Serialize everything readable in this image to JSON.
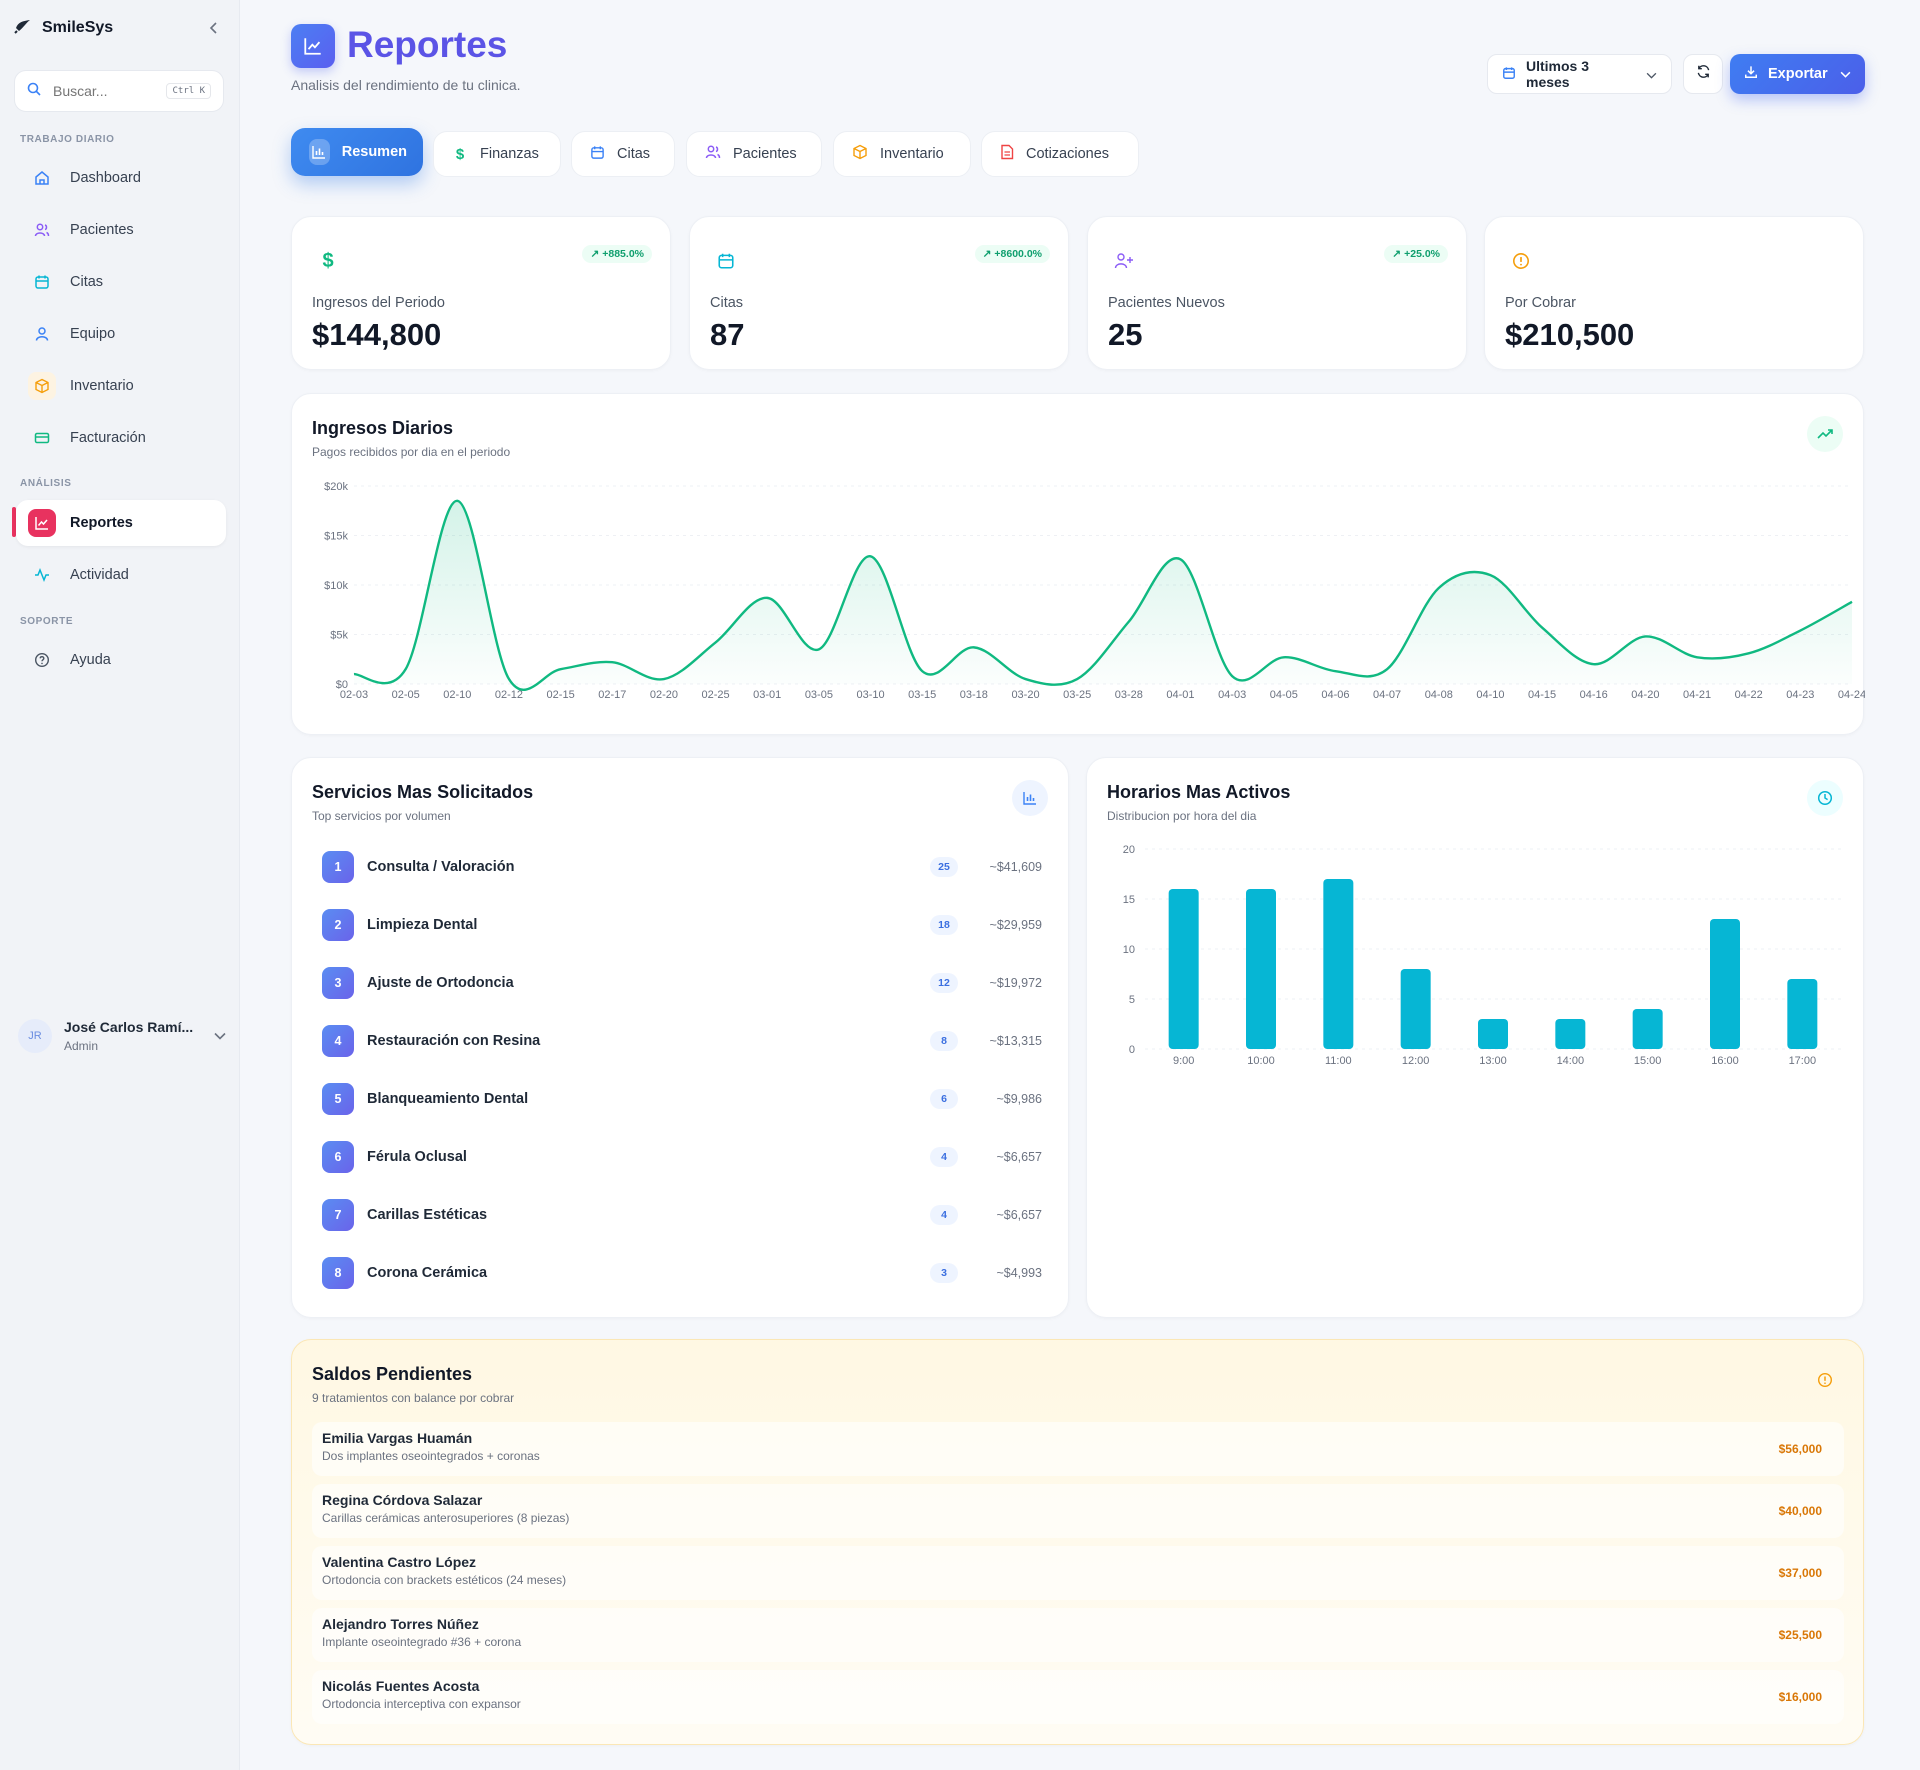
{
  "app": {
    "name": "SmileSys"
  },
  "search": {
    "placeholder": "Buscar...",
    "shortcut": "Ctrl K"
  },
  "sidebar": {
    "sections": [
      {
        "label": "TRABAJO DIARIO"
      },
      {
        "label": "ANÁLISIS"
      },
      {
        "label": "SOPORTE"
      }
    ],
    "items": [
      {
        "label": "Dashboard",
        "icon": "home-icon"
      },
      {
        "label": "Pacientes",
        "icon": "users-icon"
      },
      {
        "label": "Citas",
        "icon": "calendar-icon"
      },
      {
        "label": "Equipo",
        "icon": "user-icon"
      },
      {
        "label": "Inventario",
        "icon": "box-icon"
      },
      {
        "label": "Facturación",
        "icon": "credit-card-icon"
      },
      {
        "label": "Reportes",
        "icon": "chart-line-icon",
        "active": true
      },
      {
        "label": "Actividad",
        "icon": "activity-icon"
      },
      {
        "label": "Ayuda",
        "icon": "help-circle-icon"
      }
    ],
    "user": {
      "initials": "JR",
      "name": "José Carlos Ramí...",
      "role": "Admin"
    }
  },
  "header": {
    "title": "Reportes",
    "subtitle": "Analisis del rendimiento de tu clinica.",
    "range_label": "Ultimos 3 meses",
    "export_label": "Exportar"
  },
  "tabs": [
    {
      "label": "Resumen",
      "active": true,
      "color": "#ffffff"
    },
    {
      "label": "Finanzas",
      "color": "#10b981"
    },
    {
      "label": "Citas",
      "color": "#3b82f6"
    },
    {
      "label": "Pacientes",
      "color": "#8b5cf6"
    },
    {
      "label": "Inventario",
      "color": "#f59e0b"
    },
    {
      "label": "Cotizaciones",
      "color": "#ef4444"
    }
  ],
  "kpis": [
    {
      "label": "Ingresos del Periodo",
      "value": "$144,800",
      "badge": "+885.0%",
      "icon": "dollar-icon",
      "color": "#10b981"
    },
    {
      "label": "Citas",
      "value": "87",
      "badge": "+8600.0%",
      "icon": "calendar-icon",
      "color": "#06b6d4"
    },
    {
      "label": "Pacientes Nuevos",
      "value": "25",
      "badge": "+25.0%",
      "icon": "user-plus-icon",
      "color": "#8b5cf6"
    },
    {
      "label": "Por Cobrar",
      "value": "$210,500",
      "badge": "",
      "icon": "alert-circle-icon",
      "color": "#f59e0b"
    }
  ],
  "daily": {
    "title": "Ingresos Diarios",
    "subtitle": "Pagos recibidos por dia en el periodo"
  },
  "services": {
    "title": "Servicios Mas Solicitados",
    "subtitle": "Top servicios por volumen",
    "rows": [
      {
        "rank": "1",
        "name": "Consulta / Valoración",
        "count": "25",
        "amount": "~$41,609"
      },
      {
        "rank": "2",
        "name": "Limpieza Dental",
        "count": "18",
        "amount": "~$29,959"
      },
      {
        "rank": "3",
        "name": "Ajuste de Ortodoncia",
        "count": "12",
        "amount": "~$19,972"
      },
      {
        "rank": "4",
        "name": "Restauración con Resina",
        "count": "8",
        "amount": "~$13,315"
      },
      {
        "rank": "5",
        "name": "Blanqueamiento Dental",
        "count": "6",
        "amount": "~$9,986"
      },
      {
        "rank": "6",
        "name": "Férula Oclusal",
        "count": "4",
        "amount": "~$6,657"
      },
      {
        "rank": "7",
        "name": "Carillas Estéticas",
        "count": "4",
        "amount": "~$6,657"
      },
      {
        "rank": "8",
        "name": "Corona Cerámica",
        "count": "3",
        "amount": "~$4,993"
      }
    ]
  },
  "hours": {
    "title": "Horarios Mas Activos",
    "subtitle": "Distribucion por hora del dia"
  },
  "balances": {
    "title": "Saldos Pendientes",
    "subtitle": "9 tratamientos con balance por cobrar",
    "rows": [
      {
        "name": "Emilia Vargas Huamán",
        "desc": "Dos implantes oseointegrados + coronas",
        "amount": "$56,000"
      },
      {
        "name": "Regina Córdova Salazar",
        "desc": "Carillas cerámicas anterosuperiores (8 piezas)",
        "amount": "$40,000"
      },
      {
        "name": "Valentina Castro López",
        "desc": "Ortodoncia con brackets estéticos (24 meses)",
        "amount": "$37,000"
      },
      {
        "name": "Alejandro Torres Núñez",
        "desc": "Implante oseointegrado #36 + corona",
        "amount": "$25,500"
      },
      {
        "name": "Nicolás Fuentes Acosta",
        "desc": "Ortodoncia interceptiva con expansor",
        "amount": "$16,000"
      }
    ]
  },
  "chart_data": [
    {
      "type": "area",
      "color": "#10b981",
      "x": [
        "02-03",
        "02-05",
        "02-10",
        "02-12",
        "02-15",
        "02-17",
        "02-20",
        "02-25",
        "03-01",
        "03-05",
        "03-10",
        "03-15",
        "03-18",
        "03-20",
        "03-25",
        "03-28",
        "04-01",
        "04-03",
        "04-05",
        "04-06",
        "04-07",
        "04-08",
        "04-10",
        "04-15",
        "04-16",
        "04-20",
        "04-21",
        "04-22",
        "04-23",
        "04-24"
      ],
      "y_ticks": [
        "$0",
        "$5k",
        "$10k",
        "$15k",
        "$20k"
      ],
      "ylim": [
        0,
        20000
      ],
      "values": [
        1000,
        1500,
        18500,
        500,
        1500,
        2200,
        500,
        4200,
        8700,
        3500,
        12900,
        1300,
        3700,
        500,
        500,
        6300,
        12600,
        800,
        2700,
        1300,
        1500,
        9700,
        11000,
        5700,
        2000,
        4800,
        2700,
        3100,
        5400,
        8300
      ],
      "grid": true
    },
    {
      "type": "bar",
      "color": "#06b6d4",
      "categories": [
        "9:00",
        "10:00",
        "11:00",
        "12:00",
        "13:00",
        "14:00",
        "15:00",
        "16:00",
        "17:00"
      ],
      "values": [
        16,
        16,
        17,
        8,
        3,
        3,
        4,
        13,
        7
      ],
      "y_ticks": [
        "0",
        "5",
        "10",
        "15",
        "20"
      ],
      "ylim": [
        0,
        20
      ],
      "grid": true
    }
  ]
}
